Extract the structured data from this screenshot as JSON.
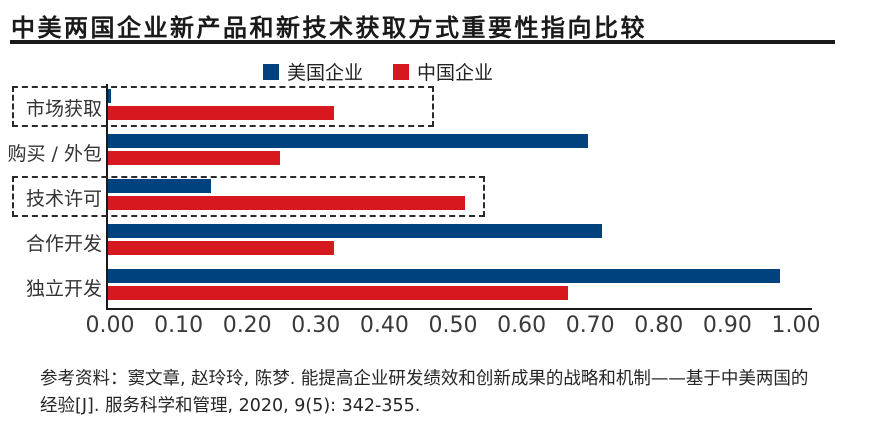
{
  "title": "中美两国企业新产品和新技术获取方式重要性指向比较",
  "legend": [
    {
      "label": "美国企业",
      "color": "#00427d"
    },
    {
      "label": "中国企业",
      "color": "#d7181f"
    }
  ],
  "chart_data": {
    "type": "bar",
    "orientation": "horizontal",
    "title": "中美两国企业新产品和新技术获取方式重要性指向比较",
    "categories": [
      "市场获取",
      "购买 / 外包",
      "技术许可",
      "合作开发",
      "独立开发"
    ],
    "series": [
      {
        "name": "美国企业",
        "color": "#00427d",
        "values": [
          0.005,
          0.7,
          0.15,
          0.72,
          0.98
        ]
      },
      {
        "name": "中国企业",
        "color": "#d7181f",
        "values": [
          0.33,
          0.25,
          0.52,
          0.33,
          0.67
        ]
      }
    ],
    "xlim": [
      0,
      1.0
    ],
    "xticks": [
      "0.00",
      "0.10",
      "0.20",
      "0.30",
      "0.40",
      "0.50",
      "0.60",
      "0.70",
      "0.80",
      "0.90",
      "1.00"
    ],
    "grid": false,
    "legend_position": "top",
    "highlight_boxes": [
      {
        "category": "市场获取",
        "category_index": 0,
        "x_extent": 0.475,
        "style": "dashed"
      },
      {
        "category": "技术许可",
        "category_index": 2,
        "x_extent": 0.55,
        "style": "dashed"
      }
    ]
  },
  "reference": "参考资料：窦文章, 赵玲玲, 陈梦. 能提高企业研发绩效和创新成果的战略和机制——基于中美两国的经验[J]. 服务科学和管理, 2020, 9(5): 342-355."
}
